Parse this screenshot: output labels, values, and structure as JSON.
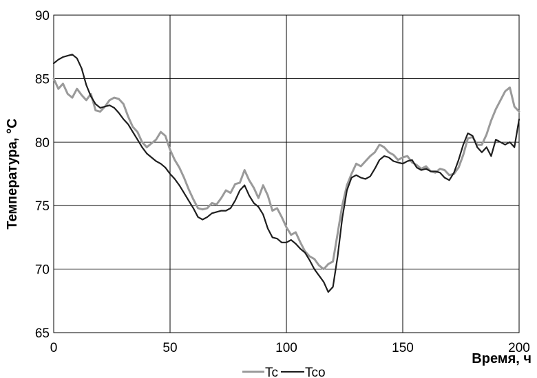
{
  "chart_data": {
    "type": "line",
    "xlabel": "Время, ч",
    "ylabel": "Температура, °C",
    "xlim": [
      0,
      200
    ],
    "ylim": [
      65,
      90
    ],
    "xticks": [
      0,
      50,
      100,
      150,
      200
    ],
    "yticks": [
      65,
      70,
      75,
      80,
      85,
      90
    ],
    "grid": true,
    "legend_position": "bottom-center",
    "series": [
      {
        "name": "Tc",
        "color": "#9a9a9a",
        "points": [
          [
            0,
            85.0
          ],
          [
            2,
            84.2
          ],
          [
            4,
            84.6
          ],
          [
            6,
            83.8
          ],
          [
            8,
            83.5
          ],
          [
            10,
            84.2
          ],
          [
            12,
            83.7
          ],
          [
            14,
            83.3
          ],
          [
            16,
            83.8
          ],
          [
            18,
            82.5
          ],
          [
            20,
            82.4
          ],
          [
            22,
            82.8
          ],
          [
            24,
            83.3
          ],
          [
            26,
            83.5
          ],
          [
            28,
            83.4
          ],
          [
            30,
            83.0
          ],
          [
            32,
            82.0
          ],
          [
            34,
            81.2
          ],
          [
            36,
            80.8
          ],
          [
            38,
            80.0
          ],
          [
            40,
            79.6
          ],
          [
            42,
            79.9
          ],
          [
            44,
            80.2
          ],
          [
            46,
            80.8
          ],
          [
            48,
            80.5
          ],
          [
            50,
            79.4
          ],
          [
            52,
            78.6
          ],
          [
            54,
            78.0
          ],
          [
            56,
            77.2
          ],
          [
            58,
            76.3
          ],
          [
            60,
            75.5
          ],
          [
            62,
            74.8
          ],
          [
            64,
            74.7
          ],
          [
            66,
            74.8
          ],
          [
            68,
            75.2
          ],
          [
            70,
            75.1
          ],
          [
            72,
            75.6
          ],
          [
            74,
            76.2
          ],
          [
            76,
            76.0
          ],
          [
            78,
            76.7
          ],
          [
            80,
            76.8
          ],
          [
            82,
            77.8
          ],
          [
            84,
            77.0
          ],
          [
            86,
            76.4
          ],
          [
            88,
            75.6
          ],
          [
            90,
            76.6
          ],
          [
            92,
            75.8
          ],
          [
            94,
            74.6
          ],
          [
            96,
            74.8
          ],
          [
            98,
            74.1
          ],
          [
            100,
            73.3
          ],
          [
            102,
            72.7
          ],
          [
            104,
            72.9
          ],
          [
            106,
            72.1
          ],
          [
            108,
            71.4
          ],
          [
            110,
            71.0
          ],
          [
            112,
            70.8
          ],
          [
            114,
            70.3
          ],
          [
            116,
            70.0
          ],
          [
            118,
            70.4
          ],
          [
            120,
            70.6
          ],
          [
            122,
            72.8
          ],
          [
            124,
            75.0
          ],
          [
            126,
            76.6
          ],
          [
            128,
            77.5
          ],
          [
            130,
            78.3
          ],
          [
            132,
            78.1
          ],
          [
            134,
            78.5
          ],
          [
            136,
            78.9
          ],
          [
            138,
            79.2
          ],
          [
            140,
            79.8
          ],
          [
            142,
            79.6
          ],
          [
            144,
            79.2
          ],
          [
            146,
            79.0
          ],
          [
            148,
            78.6
          ],
          [
            150,
            78.8
          ],
          [
            152,
            78.9
          ],
          [
            154,
            78.4
          ],
          [
            156,
            78.2
          ],
          [
            158,
            77.9
          ],
          [
            160,
            78.1
          ],
          [
            162,
            77.7
          ],
          [
            164,
            77.6
          ],
          [
            166,
            77.9
          ],
          [
            168,
            77.8
          ],
          [
            170,
            77.4
          ],
          [
            172,
            77.5
          ],
          [
            174,
            78.0
          ],
          [
            176,
            79.0
          ],
          [
            178,
            80.3
          ],
          [
            180,
            80.4
          ],
          [
            182,
            79.8
          ],
          [
            184,
            79.8
          ],
          [
            186,
            80.6
          ],
          [
            188,
            81.7
          ],
          [
            190,
            82.6
          ],
          [
            192,
            83.3
          ],
          [
            194,
            84.0
          ],
          [
            196,
            84.3
          ],
          [
            198,
            82.8
          ],
          [
            200,
            82.4
          ]
        ]
      },
      {
        "name": "Tco",
        "color": "#1e1e1e",
        "points": [
          [
            0,
            86.2
          ],
          [
            2,
            86.5
          ],
          [
            4,
            86.7
          ],
          [
            6,
            86.8
          ],
          [
            8,
            86.9
          ],
          [
            10,
            86.6
          ],
          [
            12,
            85.8
          ],
          [
            14,
            84.5
          ],
          [
            16,
            83.6
          ],
          [
            18,
            83.0
          ],
          [
            20,
            82.7
          ],
          [
            22,
            82.8
          ],
          [
            24,
            82.9
          ],
          [
            26,
            82.7
          ],
          [
            28,
            82.3
          ],
          [
            30,
            81.8
          ],
          [
            32,
            81.4
          ],
          [
            34,
            80.8
          ],
          [
            36,
            80.2
          ],
          [
            38,
            79.6
          ],
          [
            40,
            79.1
          ],
          [
            42,
            78.8
          ],
          [
            44,
            78.5
          ],
          [
            46,
            78.3
          ],
          [
            48,
            78.0
          ],
          [
            50,
            77.5
          ],
          [
            52,
            77.1
          ],
          [
            54,
            76.6
          ],
          [
            56,
            76.0
          ],
          [
            58,
            75.4
          ],
          [
            60,
            74.8
          ],
          [
            62,
            74.1
          ],
          [
            64,
            73.9
          ],
          [
            66,
            74.1
          ],
          [
            68,
            74.4
          ],
          [
            70,
            74.5
          ],
          [
            72,
            74.6
          ],
          [
            74,
            74.6
          ],
          [
            76,
            74.8
          ],
          [
            78,
            75.4
          ],
          [
            80,
            76.2
          ],
          [
            82,
            76.6
          ],
          [
            84,
            75.8
          ],
          [
            86,
            75.2
          ],
          [
            88,
            74.9
          ],
          [
            90,
            74.3
          ],
          [
            92,
            73.2
          ],
          [
            94,
            72.5
          ],
          [
            96,
            72.4
          ],
          [
            98,
            72.1
          ],
          [
            100,
            72.1
          ],
          [
            102,
            72.3
          ],
          [
            104,
            72.0
          ],
          [
            106,
            71.6
          ],
          [
            108,
            71.3
          ],
          [
            110,
            70.7
          ],
          [
            112,
            70.0
          ],
          [
            114,
            69.5
          ],
          [
            116,
            69.0
          ],
          [
            118,
            68.2
          ],
          [
            120,
            68.6
          ],
          [
            122,
            71.0
          ],
          [
            124,
            74.0
          ],
          [
            126,
            76.2
          ],
          [
            128,
            77.2
          ],
          [
            130,
            77.4
          ],
          [
            132,
            77.2
          ],
          [
            134,
            77.1
          ],
          [
            136,
            77.3
          ],
          [
            138,
            77.9
          ],
          [
            140,
            78.6
          ],
          [
            142,
            78.9
          ],
          [
            144,
            78.8
          ],
          [
            146,
            78.5
          ],
          [
            148,
            78.4
          ],
          [
            150,
            78.3
          ],
          [
            152,
            78.5
          ],
          [
            154,
            78.6
          ],
          [
            156,
            78.0
          ],
          [
            158,
            77.8
          ],
          [
            160,
            77.9
          ],
          [
            162,
            77.7
          ],
          [
            164,
            77.7
          ],
          [
            166,
            77.6
          ],
          [
            168,
            77.2
          ],
          [
            170,
            77.0
          ],
          [
            172,
            77.6
          ],
          [
            174,
            78.6
          ],
          [
            176,
            79.8
          ],
          [
            178,
            80.7
          ],
          [
            180,
            80.5
          ],
          [
            182,
            79.6
          ],
          [
            184,
            79.2
          ],
          [
            186,
            79.6
          ],
          [
            188,
            78.9
          ],
          [
            190,
            80.2
          ],
          [
            192,
            80.0
          ],
          [
            194,
            79.8
          ],
          [
            196,
            80.0
          ],
          [
            198,
            79.6
          ],
          [
            200,
            81.8
          ]
        ]
      }
    ]
  }
}
